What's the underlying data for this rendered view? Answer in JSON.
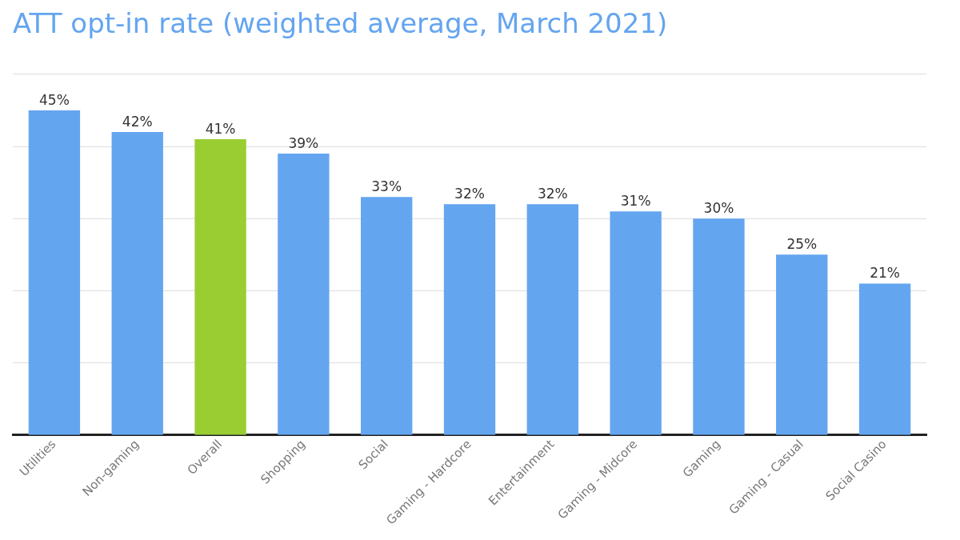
{
  "chart_data": {
    "type": "bar",
    "title": "ATT opt-in rate (weighted average, March 2021)",
    "categories": [
      "Utilities",
      "Non-gaming",
      "Overall",
      "Shopping",
      "Social",
      "Gaming - Hardcore",
      "Entertainment",
      "Gaming - Midcore",
      "Gaming",
      "Gaming - Casual",
      "Social Casino"
    ],
    "values": [
      45,
      42,
      41,
      39,
      33,
      32,
      32,
      31,
      30,
      25,
      21
    ],
    "colors": [
      "#64a5f0",
      "#64a5f0",
      "#9acd32",
      "#64a5f0",
      "#64a5f0",
      "#64a5f0",
      "#64a5f0",
      "#64a5f0",
      "#64a5f0",
      "#64a5f0",
      "#64a5f0"
    ],
    "value_labels": [
      "45%",
      "42%",
      "41%",
      "39%",
      "33%",
      "32%",
      "32%",
      "31%",
      "30%",
      "25%",
      "21%"
    ],
    "ylim": [
      0,
      50
    ],
    "yticks": [
      {
        "value": 0,
        "label": null
      },
      {
        "value": 10,
        "label": null
      },
      {
        "value": 20,
        "label": null
      },
      {
        "value": 30,
        "label": null
      },
      {
        "value": 40,
        "label": null
      },
      {
        "value": 50,
        "label": null
      }
    ],
    "grid": "y",
    "tick_labels": "x",
    "legend": false
  }
}
